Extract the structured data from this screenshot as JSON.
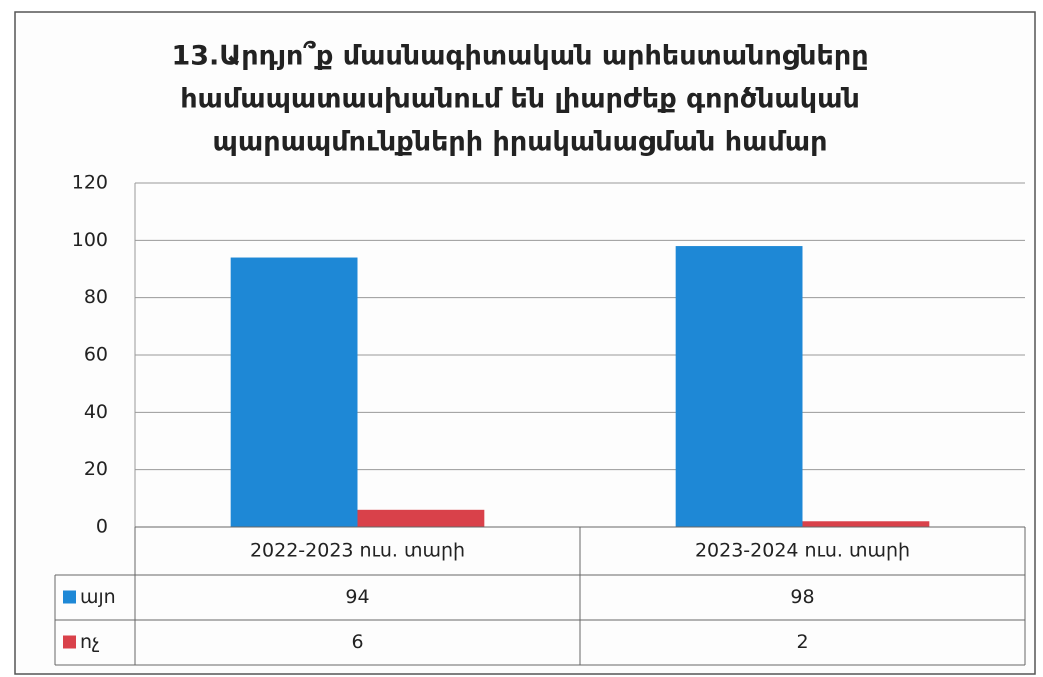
{
  "chart_data": {
    "type": "bar",
    "title": [
      "13.Արդյո՞ք մասնագիտական արհեստանոցները",
      "համապատասխանում են լիարժեք գործնական",
      "պարապմունքների իրականացման համար"
    ],
    "categories": [
      "2022-2023 ուս. տարի",
      "2023-2024 ուս. տարի"
    ],
    "series": [
      {
        "name": "այո",
        "color": "#1e88d6",
        "values": [
          94,
          98
        ]
      },
      {
        "name": "ոչ",
        "color": "#d9414a",
        "values": [
          6,
          2
        ]
      }
    ],
    "ylim": [
      0,
      120
    ],
    "yticks": [
      0,
      20,
      40,
      60,
      80,
      100,
      120
    ],
    "grid": true,
    "data_table": true
  }
}
